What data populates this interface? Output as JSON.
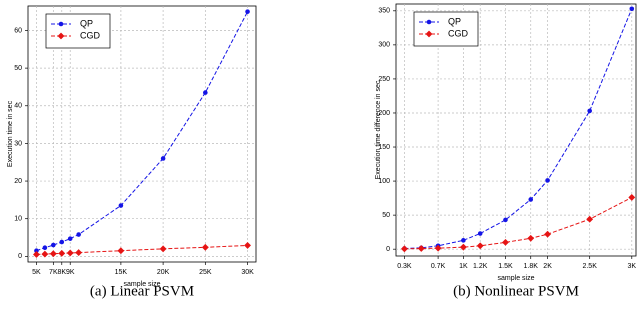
{
  "chart_data": [
    {
      "type": "line",
      "caption": "(a) Linear PSVM",
      "xlabel": "sample size",
      "ylabel": "Execution time in sec",
      "x": [
        5000,
        6000,
        7000,
        8000,
        9000,
        10000,
        15000,
        20000,
        25000,
        30000
      ],
      "series": [
        {
          "name": "QP",
          "color": "#1414e6",
          "marker": "circle",
          "values": [
            1.5,
            2.3,
            3.0,
            3.8,
            4.7,
            5.8,
            13.5,
            26,
            43.5,
            65
          ]
        },
        {
          "name": "CGD",
          "color": "#e61414",
          "marker": "diamond",
          "values": [
            0.5,
            0.6,
            0.7,
            0.8,
            0.9,
            1.0,
            1.5,
            2.0,
            2.4,
            2.9
          ]
        }
      ],
      "xlim": [
        4000,
        31000
      ],
      "ylim": [
        -1.5,
        66.5
      ],
      "xticks": [
        {
          "value": 5000,
          "label": "5K"
        },
        {
          "value": 7000,
          "label": "7K"
        },
        {
          "value": 8000,
          "label": "8K"
        },
        {
          "value": 9000,
          "label": "9K"
        },
        {
          "value": 15000,
          "label": "15K"
        },
        {
          "value": 20000,
          "label": "20K"
        },
        {
          "value": 25000,
          "label": "25K"
        },
        {
          "value": 30000,
          "label": "30K"
        }
      ],
      "yticks": [
        0,
        10,
        20,
        30,
        40,
        50,
        60
      ],
      "grid": true,
      "legend": "top-left"
    },
    {
      "type": "line",
      "caption": "(b) Nonlinear PSVM",
      "xlabel": "sample size",
      "ylabel": "Execution time difference in sec",
      "x": [
        300,
        500,
        700,
        1000,
        1200,
        1500,
        1800,
        2000,
        2500,
        3000
      ],
      "series": [
        {
          "name": "QP",
          "color": "#1414e6",
          "marker": "circle",
          "values": [
            1,
            2,
            5,
            13,
            23,
            43,
            73,
            101,
            203,
            353
          ]
        },
        {
          "name": "CGD",
          "color": "#e61414",
          "marker": "diamond",
          "values": [
            0.5,
            1,
            1.5,
            3,
            5,
            10,
            16,
            22,
            44,
            76
          ]
        }
      ],
      "xlim": [
        200,
        3050
      ],
      "ylim": [
        -10,
        360
      ],
      "xticks": [
        {
          "value": 300,
          "label": "0.3K"
        },
        {
          "value": 700,
          "label": "0.7K"
        },
        {
          "value": 1000,
          "label": "1K"
        },
        {
          "value": 1200,
          "label": "1.2K"
        },
        {
          "value": 1500,
          "label": "1.5K"
        },
        {
          "value": 1800,
          "label": "1.8K"
        },
        {
          "value": 2000,
          "label": "2K"
        },
        {
          "value": 2500,
          "label": "2.5K"
        },
        {
          "value": 3000,
          "label": "3K"
        }
      ],
      "yticks": [
        0,
        50,
        100,
        150,
        200,
        250,
        300,
        350
      ],
      "grid": true,
      "legend": "top-left"
    }
  ]
}
